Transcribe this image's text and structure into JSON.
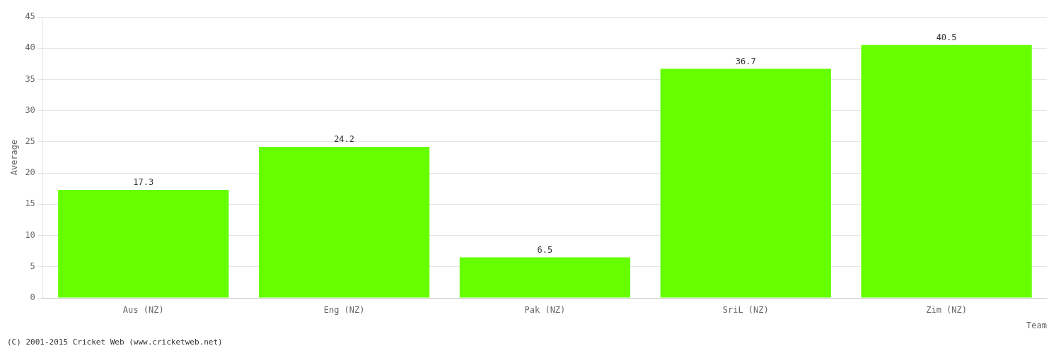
{
  "chart_data": {
    "type": "bar",
    "categories": [
      "Aus (NZ)",
      "Eng (NZ)",
      "Pak (NZ)",
      "SriL (NZ)",
      "Zim (NZ)"
    ],
    "values": [
      17.3,
      24.2,
      6.5,
      36.7,
      40.5
    ],
    "color": "#66ff00",
    "xlabel": "Team",
    "ylabel": "Average",
    "ylim": [
      0,
      45
    ],
    "yticks": [
      0,
      5,
      10,
      15,
      20,
      25,
      30,
      35,
      40,
      45
    ],
    "grid": true,
    "data_labels": true,
    "annotations": [
      "(C) 2001-2015 Cricket Web (www.cricketweb.net)"
    ]
  }
}
